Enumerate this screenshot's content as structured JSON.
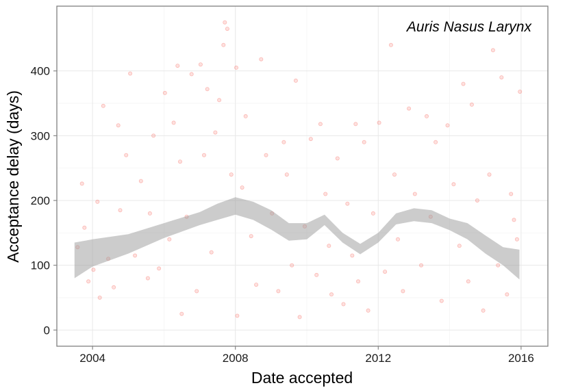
{
  "chart_data": {
    "type": "scatter",
    "title": "",
    "annotation": "Auris Nasus Larynx",
    "xlabel": "Date accepted",
    "ylabel": "Acceptance delay (days)",
    "x_axis_type": "date",
    "xlim": [
      "2003-01-01",
      "2016-10-01"
    ],
    "ylim": [
      -25,
      500
    ],
    "x_ticks": [
      "2004-01-01",
      "2008-01-01",
      "2012-01-01",
      "2016-01-01"
    ],
    "x_tick_labels": [
      "2004",
      "2008",
      "2012",
      "2016"
    ],
    "y_ticks": [
      0,
      100,
      200,
      300,
      400
    ],
    "y_tick_labels": [
      "0",
      "100",
      "200",
      "300",
      "400"
    ],
    "grid": true,
    "point_color": "#f8766d",
    "band_color": "#999999",
    "series": [
      {
        "kind": "points",
        "points": [
          [
            "2003-08-01",
            128
          ],
          [
            "2003-09-15",
            226
          ],
          [
            "2003-10-10",
            158
          ],
          [
            "2003-11-20",
            75
          ],
          [
            "2004-01-10",
            93
          ],
          [
            "2004-02-20",
            198
          ],
          [
            "2004-03-15",
            50
          ],
          [
            "2004-04-20",
            346
          ],
          [
            "2004-06-10",
            110
          ],
          [
            "2004-08-05",
            66
          ],
          [
            "2004-09-20",
            316
          ],
          [
            "2004-10-10",
            185
          ],
          [
            "2004-12-10",
            270
          ],
          [
            "2005-01-20",
            396
          ],
          [
            "2005-03-10",
            115
          ],
          [
            "2005-05-10",
            230
          ],
          [
            "2005-07-20",
            80
          ],
          [
            "2005-08-10",
            180
          ],
          [
            "2005-09-15",
            300
          ],
          [
            "2005-11-10",
            95
          ],
          [
            "2006-01-10",
            366
          ],
          [
            "2006-02-25",
            140
          ],
          [
            "2006-04-10",
            320
          ],
          [
            "2006-05-20",
            408
          ],
          [
            "2006-06-15",
            260
          ],
          [
            "2006-07-01",
            25
          ],
          [
            "2006-08-20",
            175
          ],
          [
            "2006-10-10",
            395
          ],
          [
            "2006-12-01",
            60
          ],
          [
            "2007-01-10",
            410
          ],
          [
            "2007-02-15",
            270
          ],
          [
            "2007-03-20",
            372
          ],
          [
            "2007-05-01",
            120
          ],
          [
            "2007-06-10",
            305
          ],
          [
            "2007-07-20",
            355
          ],
          [
            "2007-09-01",
            440
          ],
          [
            "2007-09-15",
            475
          ],
          [
            "2007-10-10",
            465
          ],
          [
            "2007-11-20",
            240
          ],
          [
            "2008-01-10",
            405
          ],
          [
            "2008-01-20",
            22
          ],
          [
            "2008-03-10",
            220
          ],
          [
            "2008-04-15",
            330
          ],
          [
            "2008-06-10",
            145
          ],
          [
            "2008-08-01",
            70
          ],
          [
            "2008-09-20",
            418
          ],
          [
            "2008-11-10",
            270
          ],
          [
            "2009-01-10",
            180
          ],
          [
            "2009-03-15",
            60
          ],
          [
            "2009-05-10",
            290
          ],
          [
            "2009-06-10",
            240
          ],
          [
            "2009-08-01",
            100
          ],
          [
            "2009-09-10",
            385
          ],
          [
            "2009-10-20",
            20
          ],
          [
            "2009-12-10",
            160
          ],
          [
            "2010-02-10",
            295
          ],
          [
            "2010-04-10",
            85
          ],
          [
            "2010-05-20",
            318
          ],
          [
            "2010-07-10",
            210
          ],
          [
            "2010-08-15",
            130
          ],
          [
            "2010-09-10",
            55
          ],
          [
            "2010-11-10",
            265
          ],
          [
            "2011-01-10",
            40
          ],
          [
            "2011-02-20",
            195
          ],
          [
            "2011-04-10",
            115
          ],
          [
            "2011-05-15",
            318
          ],
          [
            "2011-06-10",
            75
          ],
          [
            "2011-08-10",
            290
          ],
          [
            "2011-09-20",
            30
          ],
          [
            "2011-11-10",
            180
          ],
          [
            "2012-01-10",
            320
          ],
          [
            "2012-03-10",
            90
          ],
          [
            "2012-05-10",
            440
          ],
          [
            "2012-06-15",
            240
          ],
          [
            "2012-07-20",
            140
          ],
          [
            "2012-09-10",
            60
          ],
          [
            "2012-11-10",
            342
          ],
          [
            "2013-01-10",
            210
          ],
          [
            "2013-03-15",
            100
          ],
          [
            "2013-05-10",
            330
          ],
          [
            "2013-06-20",
            175
          ],
          [
            "2013-08-10",
            290
          ],
          [
            "2013-10-10",
            45
          ],
          [
            "2013-12-10",
            316
          ],
          [
            "2014-02-10",
            225
          ],
          [
            "2014-04-10",
            130
          ],
          [
            "2014-05-20",
            380
          ],
          [
            "2014-07-10",
            75
          ],
          [
            "2014-08-15",
            348
          ],
          [
            "2014-10-10",
            200
          ],
          [
            "2014-12-10",
            30
          ],
          [
            "2015-02-10",
            240
          ],
          [
            "2015-03-20",
            432
          ],
          [
            "2015-05-10",
            100
          ],
          [
            "2015-06-15",
            390
          ],
          [
            "2015-08-10",
            55
          ],
          [
            "2015-09-20",
            210
          ],
          [
            "2015-10-20",
            170
          ],
          [
            "2015-11-20",
            140
          ],
          [
            "2015-12-20",
            368
          ]
        ]
      },
      {
        "kind": "confidence-band",
        "x": [
          "2003-07-01",
          "2004-01-01",
          "2005-01-01",
          "2006-01-01",
          "2007-01-01",
          "2007-07-01",
          "2008-01-01",
          "2008-07-01",
          "2009-01-01",
          "2009-07-01",
          "2010-01-01",
          "2010-07-01",
          "2011-01-01",
          "2011-07-01",
          "2012-01-01",
          "2012-07-01",
          "2013-01-01",
          "2013-07-01",
          "2014-01-01",
          "2014-07-01",
          "2015-01-01",
          "2015-07-01",
          "2015-12-15"
        ],
        "lower": [
          80,
          98,
          118,
          142,
          162,
          170,
          178,
          170,
          155,
          138,
          140,
          162,
          135,
          117,
          135,
          163,
          168,
          165,
          154,
          140,
          118,
          100,
          78
        ],
        "upper": [
          135,
          140,
          148,
          165,
          182,
          195,
          205,
          198,
          185,
          165,
          165,
          178,
          150,
          133,
          150,
          180,
          188,
          185,
          172,
          165,
          146,
          128,
          124
        ]
      }
    ]
  }
}
